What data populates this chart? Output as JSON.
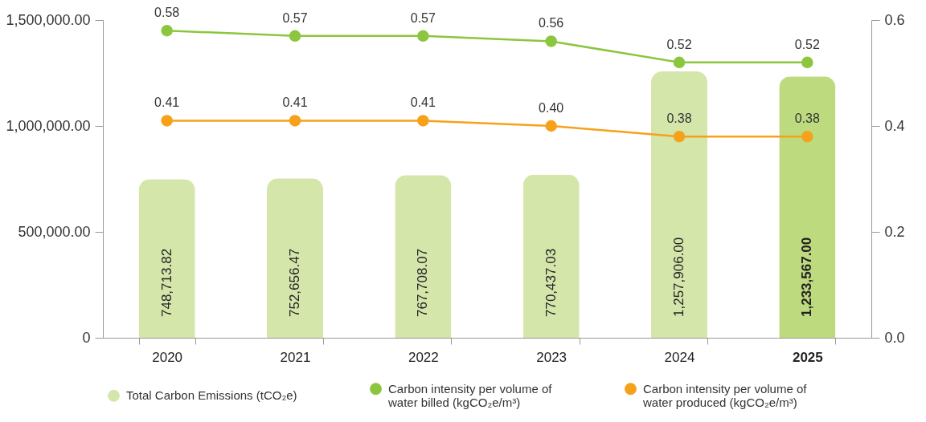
{
  "chart_data": {
    "type": "bar",
    "categories": [
      "2020",
      "2021",
      "2022",
      "2023",
      "2024",
      "2025"
    ],
    "ylim": [
      0,
      1500000
    ],
    "yticks": [
      {
        "value": 0,
        "label": "0"
      },
      {
        "value": 500000,
        "label": "500,000.00"
      },
      {
        "value": 1000000,
        "label": "1,000,000.00"
      },
      {
        "value": 1500000,
        "label": "1,500,000.00"
      }
    ],
    "y2lim": [
      0,
      0.6
    ],
    "y2ticks": [
      {
        "value": 0,
        "label": "0.0"
      },
      {
        "value": 0.2,
        "label": "0.2"
      },
      {
        "value": 0.4,
        "label": "0.4"
      },
      {
        "value": 0.6,
        "label": "0.6"
      }
    ],
    "legend": "bottom",
    "marker": "circle",
    "grid": false,
    "series": [
      {
        "name": "Total Carbon Emissions (tCO₂e)",
        "color": "#d5e6ab",
        "colors": [
          "#d5e6ab",
          "#d5e6ab",
          "#d5e6ab",
          "#d5e6ab",
          "#d5e6ab",
          "#bdda7e"
        ],
        "values": [
          748713.82,
          752656.47,
          767708.07,
          770437.03,
          1257906.0,
          1233567.0
        ],
        "value_labels": [
          "748,713.82",
          "752,656.47",
          "767,708.07",
          "770,437.03",
          "1,257,906.00",
          "1,233,567.00"
        ]
      },
      {
        "name": "Carbon intensity per volume of water billed (kgCO₂e/m³)",
        "type": "line",
        "axis": "y2",
        "color": "#8cc63e",
        "values": [
          0.58,
          0.57,
          0.57,
          0.56,
          0.52,
          0.52
        ],
        "value_labels": [
          "0.58",
          "0.57",
          "0.57",
          "0.56",
          "0.52",
          "0.52"
        ]
      },
      {
        "name": "Carbon intensity per volume of water produced (kgCO₂e/m³)",
        "type": "line",
        "axis": "y2",
        "color": "#f7a11a",
        "values": [
          0.41,
          0.41,
          0.41,
          0.4,
          0.38,
          0.38
        ],
        "value_labels": [
          "0.41",
          "0.41",
          "0.41",
          "0.40",
          "0.38",
          "0.38"
        ]
      }
    ]
  }
}
